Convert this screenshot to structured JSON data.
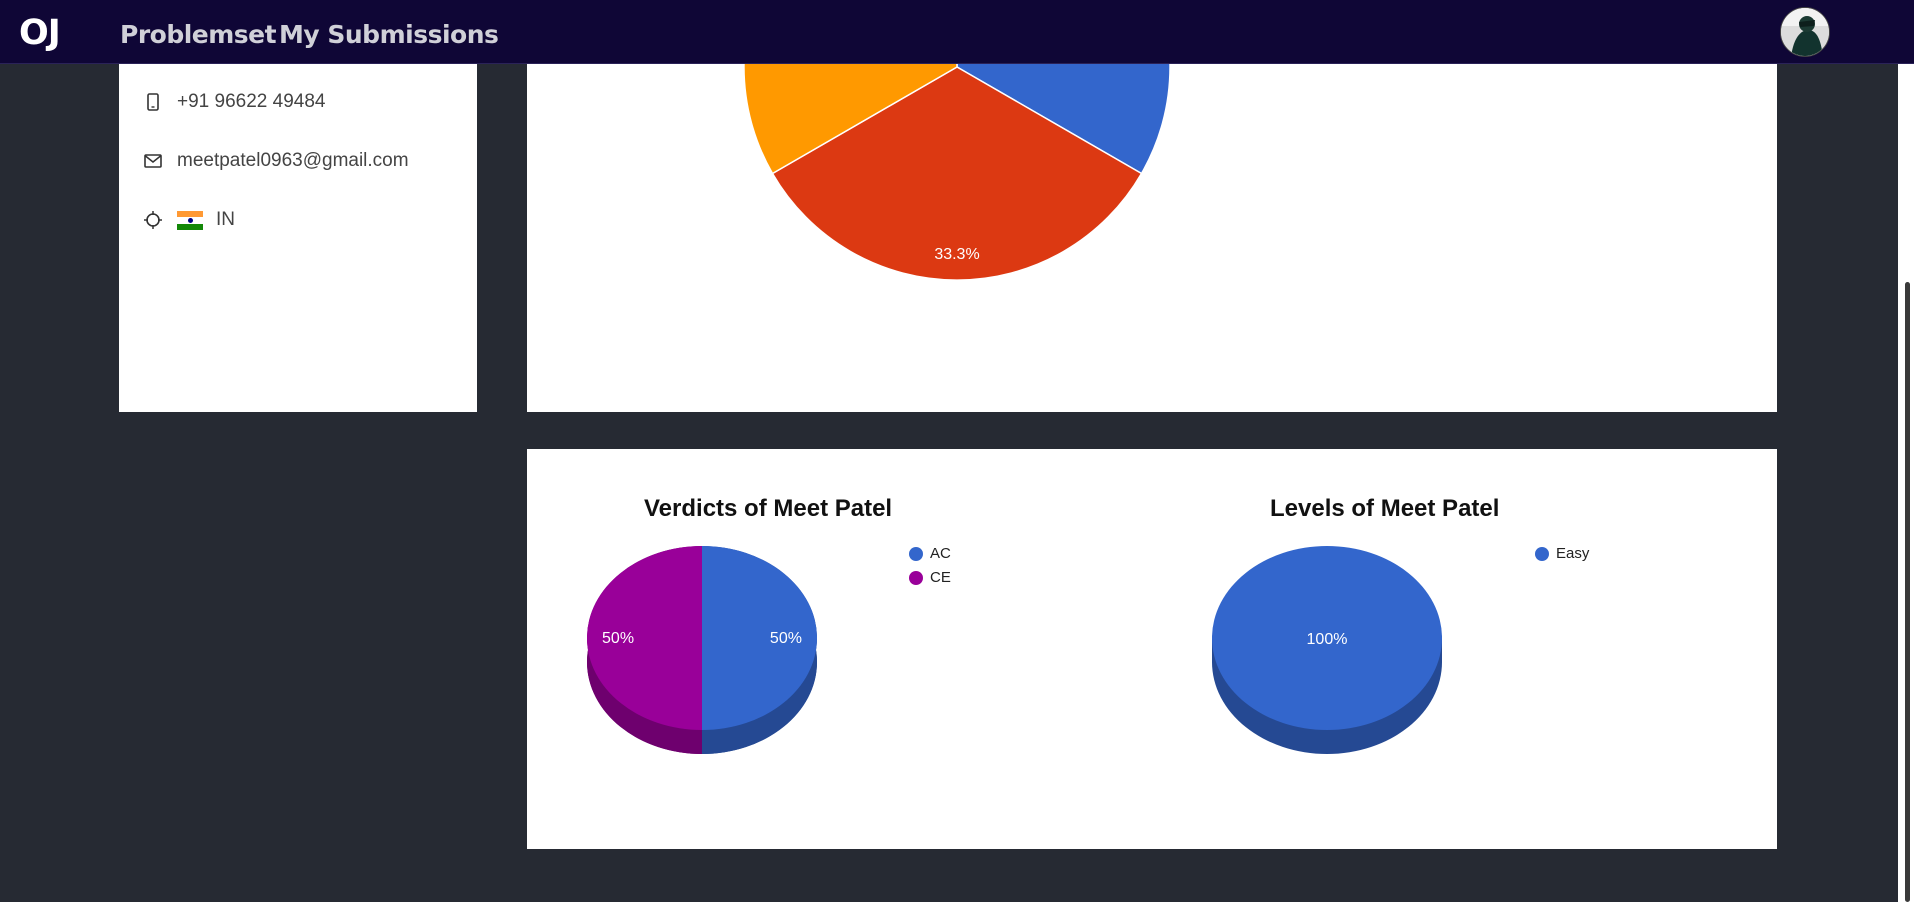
{
  "nav": {
    "brand": "OJ",
    "links": [
      "Problemset",
      "My Submissions"
    ]
  },
  "profile": {
    "phone": "+91 96622 49484",
    "email": "meetpatel0963@gmail.com",
    "country": "IN",
    "icons": [
      "phone-icon",
      "mail-icon",
      "location-icon"
    ]
  },
  "top_chart": {
    "slice_label": "33.3%",
    "colors": [
      "#3366cc",
      "#dc3912",
      "#ff9900"
    ]
  },
  "chart_data": [
    {
      "type": "pie",
      "title": "Verdicts of Meet Patel",
      "categories": [
        "AC",
        "CE"
      ],
      "values": [
        50,
        50
      ],
      "labels": [
        "50%",
        "50%"
      ],
      "colors": [
        "#3366cc",
        "#990099"
      ],
      "legend": "top-right"
    },
    {
      "type": "pie",
      "title": "Levels of Meet Patel",
      "categories": [
        "Easy"
      ],
      "values": [
        100
      ],
      "labels": [
        "100%"
      ],
      "colors": [
        "#3366cc"
      ],
      "legend": "top-right"
    }
  ]
}
